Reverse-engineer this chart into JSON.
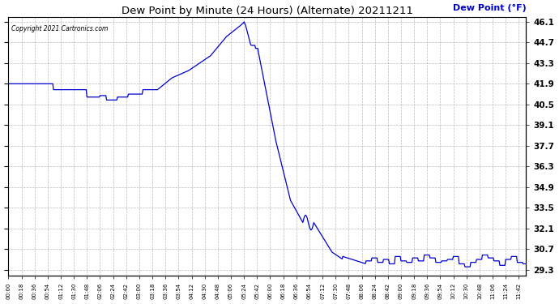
{
  "title": "Dew Point by Minute (24 Hours) (Alternate) 20211211",
  "copyright": "Copyright 2021 Cartronics.com",
  "legend_label": "Dew Point (°F)",
  "yticks": [
    29.3,
    30.7,
    32.1,
    33.5,
    34.9,
    36.3,
    37.7,
    39.1,
    40.5,
    41.9,
    43.3,
    44.7,
    46.1
  ],
  "ymin": 29.3,
  "ymax": 46.1,
  "line_color": "#0000cc",
  "title_color": "#000000",
  "legend_color": "#0000cc",
  "copyright_color": "#000000",
  "background_color": "#ffffff",
  "grid_color": "#aaaaaa",
  "xtick_interval_minutes": 18,
  "total_minutes": 713,
  "figwidth": 6.9,
  "figheight": 3.75
}
